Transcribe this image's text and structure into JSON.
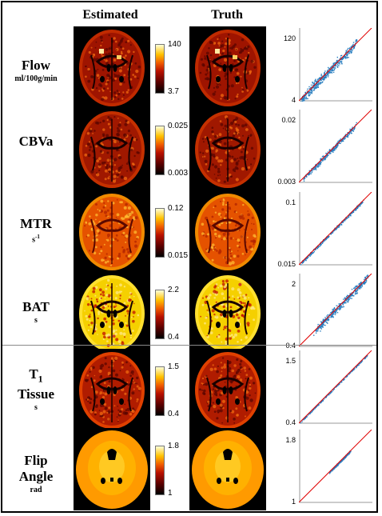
{
  "headers": {
    "estimated": "Estimated",
    "truth": "Truth"
  },
  "rows": [
    {
      "id": "flow",
      "name": "Flow",
      "unit": "ml/100g/min",
      "cbar_max": "140",
      "cbar_min": "3.7",
      "scatter_max": "120",
      "scatter_min": "4",
      "map": "flow"
    },
    {
      "id": "cbva",
      "name": "CBVa",
      "unit": "",
      "cbar_max": "0.025",
      "cbar_min": "0.003",
      "scatter_max": "0.02",
      "scatter_min": "0.003",
      "map": "cbva"
    },
    {
      "id": "mtr",
      "name": "MTR",
      "unit": "s",
      "unit_sup": "-1",
      "cbar_max": "0.12",
      "cbar_min": "0.015",
      "scatter_max": "0.1",
      "scatter_min": "0.015",
      "map": "mtr"
    },
    {
      "id": "bat",
      "name": "BAT",
      "unit": "s",
      "cbar_max": "2.2",
      "cbar_min": "0.4",
      "scatter_max": "2",
      "scatter_min": "0.4",
      "map": "bat"
    },
    {
      "id": "t1",
      "name": "T",
      "name_sub": "1",
      "name2": "Tissue",
      "unit": "s",
      "cbar_max": "1.5",
      "cbar_min": "0.4",
      "scatter_max": "1.5",
      "scatter_min": "0.4",
      "map": "t1"
    },
    {
      "id": "flip",
      "name": "Flip",
      "name2": "Angle",
      "unit": "rad",
      "cbar_max": "1.8",
      "cbar_min": "1",
      "scatter_max": "1.8",
      "scatter_min": "1",
      "map": "flip"
    }
  ],
  "colors": {
    "identity_line": "#e00000",
    "scatter_points": "#2a7fc0"
  }
}
